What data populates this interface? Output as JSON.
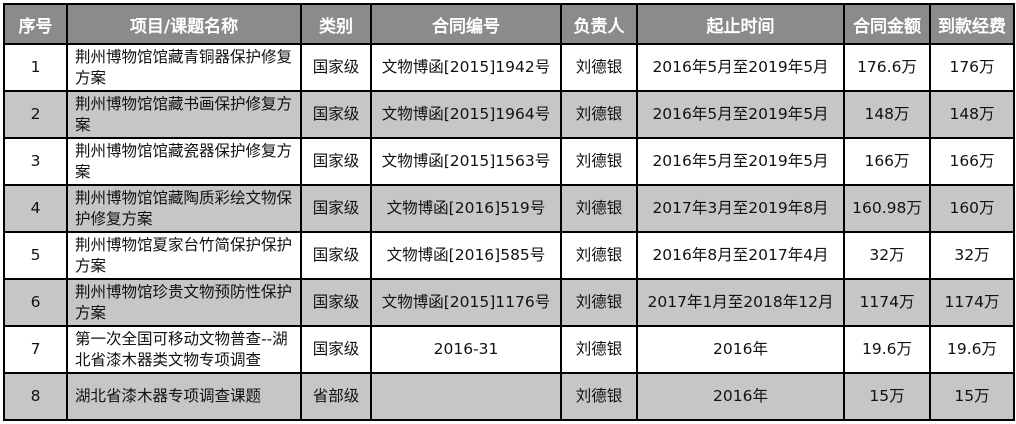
{
  "colors": {
    "header_bg": "#8b8b8b",
    "header_text": "#ffffff",
    "row_bg": "#ffffff",
    "row_alt_bg": "#c6c6c6",
    "border": "#000000"
  },
  "table": {
    "columns": [
      {
        "label": "序号"
      },
      {
        "label": "项目/课题名称"
      },
      {
        "label": "类别"
      },
      {
        "label": "合同编号"
      },
      {
        "label": "负责人"
      },
      {
        "label": "起止时间"
      },
      {
        "label": "合同金额"
      },
      {
        "label": "到款经费"
      }
    ],
    "rows": [
      [
        "1",
        "荆州博物馆馆藏青铜器保护修复方案",
        "国家级",
        "文物博函[2015]1942号",
        "刘德银",
        "2016年5月至2019年5月",
        "176.6万",
        "176万"
      ],
      [
        "2",
        "荆州博物馆馆藏书画保护修复方案",
        "国家级",
        "文物博函[2015]1964号",
        "刘德银",
        "2016年5月至2019年5月",
        "148万",
        "148万"
      ],
      [
        "3",
        "荆州博物馆馆藏瓷器保护修复方案",
        "国家级",
        "文物博函[2015]1563号",
        "刘德银",
        "2016年5月至2019年5月",
        "166万",
        "166万"
      ],
      [
        "4",
        "荆州博物馆馆藏陶质彩绘文物保护修复方案",
        "国家级",
        "文物博函[2016]519号",
        "刘德银",
        "2017年3月至2019年8月",
        "160.98万",
        "160万"
      ],
      [
        "5",
        "荆州博物馆夏家台竹简保护保护方案",
        "国家级",
        "文物博函[2016]585号",
        "刘德银",
        "2016年8月至2017年4月",
        "32万",
        "32万"
      ],
      [
        "6",
        "荆州博物馆珍贵文物预防性保护方案",
        "国家级",
        "文物博函[2015]1176号",
        "刘德银",
        "2017年1月至2018年12月",
        "1174万",
        "1174万"
      ],
      [
        "7",
        "第一次全国可移动文物普查--湖北省漆木器类文物专项调查",
        "国家级",
        "2016-31",
        "刘德银",
        "2016年",
        "19.6万",
        "19.6万"
      ],
      [
        "8",
        "湖北省漆木器专项调查课题",
        "省部级",
        "",
        "刘德银",
        "2016年",
        "15万",
        "15万"
      ]
    ]
  }
}
